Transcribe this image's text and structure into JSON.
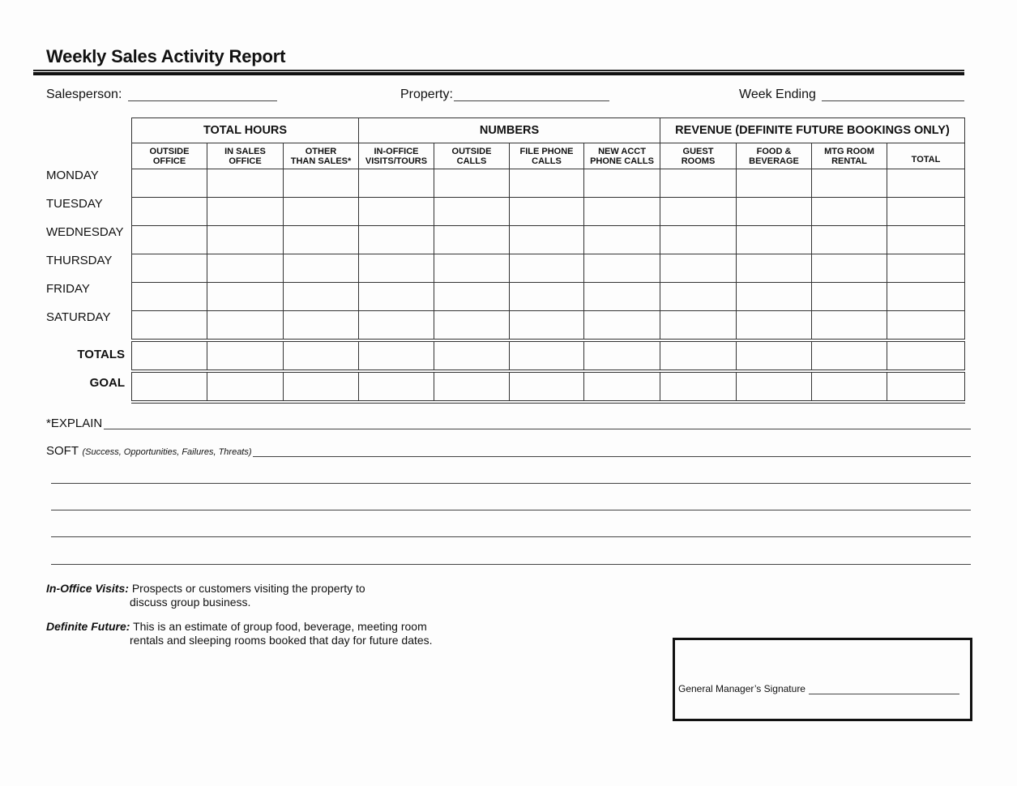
{
  "title": "Weekly Sales Activity Report",
  "fields": {
    "salesperson": "Salesperson:",
    "property": "Property:",
    "week_ending": "Week Ending"
  },
  "table": {
    "groups": [
      {
        "label": "TOTAL HOURS",
        "span": 3
      },
      {
        "label": "NUMBERS",
        "span": 4
      },
      {
        "label": "REVENUE (DEFINITE FUTURE BOOKINGS ONLY)",
        "span": 4
      }
    ],
    "columns": [
      [
        "OUTSIDE",
        "OFFICE"
      ],
      [
        "IN SALES",
        "OFFICE"
      ],
      [
        "OTHER",
        "THAN SALES*"
      ],
      [
        "IN-OFFICE",
        "VISITS/TOURS"
      ],
      [
        "OUTSIDE",
        "CALLS"
      ],
      [
        "FILE PHONE",
        "CALLS"
      ],
      [
        "NEW ACCT",
        "PHONE CALLS"
      ],
      [
        "GUEST",
        "ROOMS"
      ],
      [
        "FOOD &",
        "BEVERAGE"
      ],
      [
        "MTG ROOM",
        "RENTAL"
      ],
      [
        "",
        "TOTAL"
      ]
    ],
    "rows": [
      "MONDAY",
      "TUESDAY",
      "WEDNESDAY",
      "THURSDAY",
      "FRIDAY",
      "SATURDAY"
    ],
    "summary_rows": [
      "TOTALS",
      "GOAL"
    ]
  },
  "explain_label": "*EXPLAIN",
  "soft_label": "SOFT",
  "soft_hint": "(Success, Opportunities, Failures, Threats)",
  "notes": [
    {
      "term": "In-Office Visits:",
      "line1": "Prospects or customers visiting the property to",
      "line2": "discuss group business."
    },
    {
      "term": "Definite Future:",
      "line1": "This is an estimate of group food, beverage, meeting room",
      "line2": "rentals and sleeping rooms booked that day for future dates."
    }
  ],
  "signature_label": "General Manager’s Signature"
}
